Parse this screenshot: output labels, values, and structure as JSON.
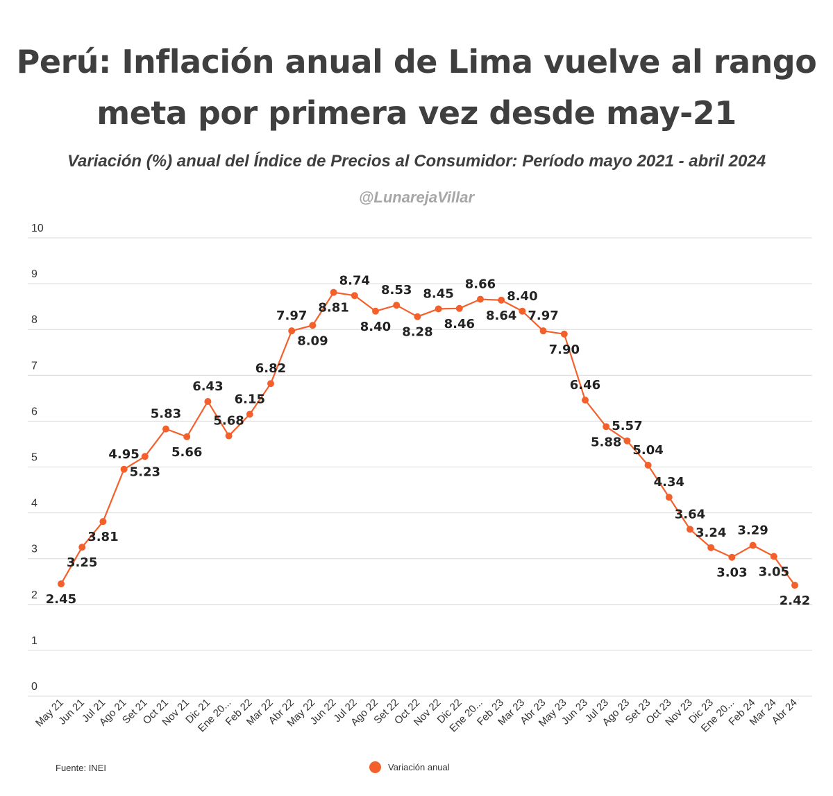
{
  "header": {
    "title_line1": "Perú: Inflación anual de Lima vuelve al rango",
    "title_line2": "meta por primera vez desde may-21",
    "subtitle": "Variación (%) anual del Índice de Precios al Consumidor: Período mayo 2021 - abril 2024",
    "handle": "@LunarejaVillar"
  },
  "footer": {
    "source": "Fuente: INEI",
    "legend_label": "Variación anual"
  },
  "colors": {
    "line": "#f4602b",
    "grid": "#d9d9d9",
    "text": "#404040"
  },
  "chart_data": {
    "type": "line",
    "title": "Perú: Inflación anual de Lima vuelve al rango meta por primera vez desde may-21",
    "subtitle": "Variación (%) anual del Índice de Precios al Consumidor: Período mayo 2021 - abril 2024",
    "categories": [
      "May 21",
      "Jun 21",
      "Jul 21",
      "Ago 21",
      "Set 21",
      "Oct 21",
      "Nov 21",
      "Dic 21",
      "Ene 20...",
      "Feb 22",
      "Mar 22",
      "Abr 22",
      "May 22",
      "Jun 22",
      "Jul 22",
      "Ago 22",
      "Set 22",
      "Oct 22",
      "Nov 22",
      "Dic 22",
      "Ene 20...",
      "Feb 23",
      "Mar 23",
      "Abr 23",
      "May 23",
      "Jun 23",
      "Jul 23",
      "Ago 23",
      "Set 23",
      "Oct 23",
      "Nov 23",
      "Dic 23",
      "Ene 20...",
      "Feb 24",
      "Mar 24",
      "Abr 24"
    ],
    "series": [
      {
        "name": "Variación anual",
        "values": [
          2.45,
          3.25,
          3.81,
          4.95,
          5.23,
          5.83,
          5.66,
          6.43,
          5.68,
          6.15,
          6.82,
          7.97,
          8.09,
          8.81,
          8.74,
          8.4,
          8.53,
          8.28,
          8.45,
          8.46,
          8.66,
          8.64,
          8.4,
          7.97,
          7.9,
          6.46,
          5.88,
          5.57,
          5.04,
          4.34,
          3.64,
          3.24,
          3.03,
          3.29,
          3.05,
          2.42
        ]
      }
    ],
    "data_labels": [
      "2.45",
      "3.25",
      "3.81",
      "4.95",
      "5.23",
      "5.83",
      "5.66",
      "6.43",
      "5.68",
      "6.15",
      "6.82",
      "7.97",
      "8.09",
      "8.81",
      "8.74",
      "8.40",
      "8.53",
      "8.28",
      "8.45",
      "8.46",
      "8.66",
      "8.64",
      "8.40",
      "7.97",
      "7.90",
      "6.46",
      "5.88",
      "5.57",
      "5.04",
      "4.34",
      "3.64",
      "3.24",
      "3.03",
      "3.29",
      "3.05",
      "2.42"
    ],
    "label_above": [
      false,
      false,
      false,
      true,
      false,
      true,
      false,
      true,
      true,
      true,
      true,
      true,
      false,
      false,
      true,
      false,
      true,
      false,
      true,
      false,
      true,
      false,
      true,
      true,
      false,
      true,
      false,
      true,
      true,
      true,
      true,
      true,
      false,
      true,
      false,
      false
    ],
    "yticks": [
      "0",
      "1",
      "2",
      "3",
      "4",
      "5",
      "6",
      "7",
      "8",
      "9",
      "10"
    ],
    "ylim": [
      0,
      10
    ],
    "grid": true,
    "legend_position": "bottom-center"
  }
}
